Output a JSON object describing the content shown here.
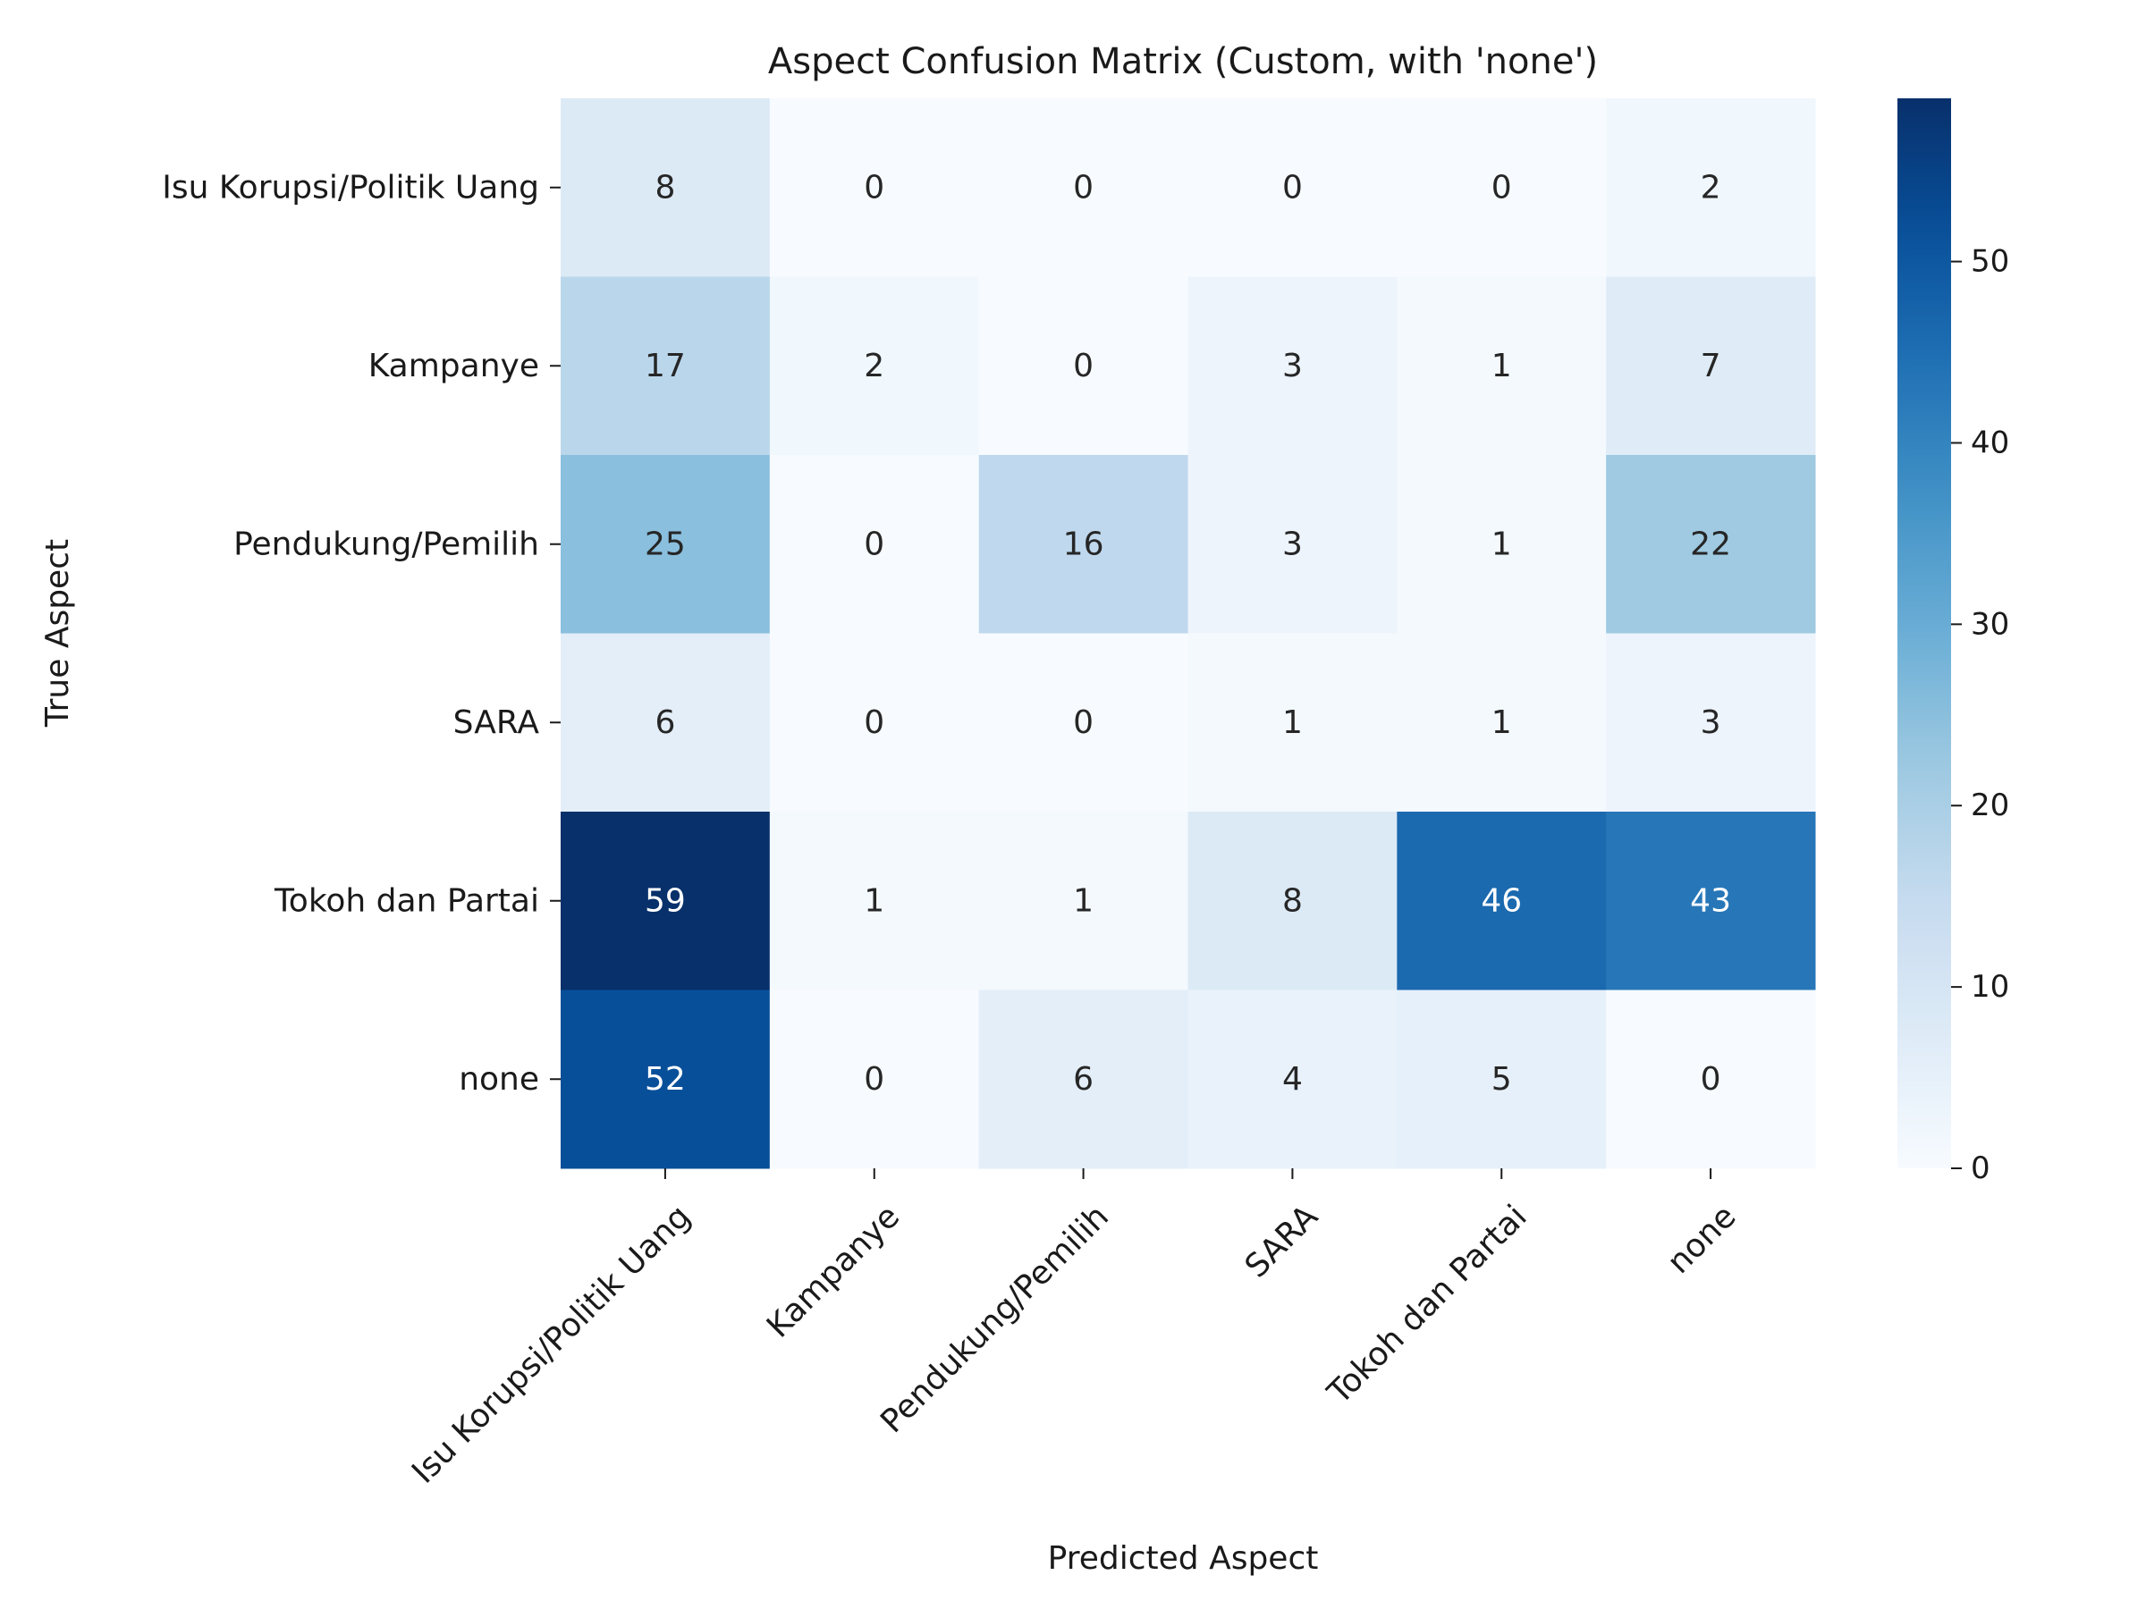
{
  "chart_data": {
    "type": "heatmap",
    "title": "Aspect Confusion Matrix (Custom, with 'none')",
    "xlabel": "Predicted Aspect",
    "ylabel": "True Aspect",
    "x_categories": [
      "Isu Korupsi/Politik Uang",
      "Kampanye",
      "Pendukung/Pemilih",
      "SARA",
      "Tokoh dan Partai",
      "none"
    ],
    "y_categories": [
      "Isu Korupsi/Politik Uang",
      "Kampanye",
      "Pendukung/Pemilih",
      "SARA",
      "Tokoh dan Partai",
      "none"
    ],
    "values": [
      [
        8,
        0,
        0,
        0,
        0,
        2
      ],
      [
        17,
        2,
        0,
        3,
        1,
        7
      ],
      [
        25,
        0,
        16,
        3,
        1,
        22
      ],
      [
        6,
        0,
        0,
        1,
        1,
        3
      ],
      [
        59,
        1,
        1,
        8,
        46,
        43
      ],
      [
        52,
        0,
        6,
        4,
        5,
        0
      ]
    ],
    "colormap": "Blues",
    "color_range": [
      0,
      59
    ],
    "colorbar_ticks": [
      0,
      10,
      20,
      30,
      40,
      50
    ],
    "grid": false,
    "legend": "colorbar-right"
  }
}
